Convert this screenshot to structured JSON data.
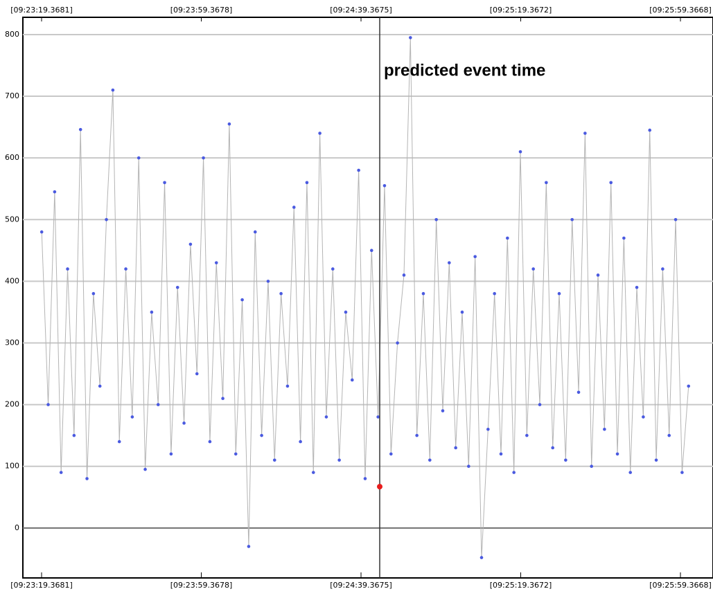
{
  "chart_data": {
    "type": "line",
    "annotation": {
      "text": "predicted event time",
      "x": 33884.05
    },
    "event_point": {
      "x": 33884.05,
      "value": 67,
      "color": "#e81c1c"
    },
    "x": [
      33799.4,
      33801.02,
      33802.64,
      33804.26,
      33805.88,
      33807.5,
      33809.12,
      33810.74,
      33812.36,
      33813.98,
      33815.6,
      33817.22,
      33818.84,
      33820.46,
      33822.08,
      33823.7,
      33825.32,
      33826.94,
      33828.56,
      33830.18,
      33831.8,
      33833.42,
      33835.04,
      33836.66,
      33838.28,
      33839.9,
      33841.52,
      33843.14,
      33844.76,
      33846.38,
      33848,
      33849.62,
      33851.24,
      33852.86,
      33854.48,
      33856.1,
      33857.72,
      33859.34,
      33860.96,
      33862.58,
      33864.2,
      33865.82,
      33867.44,
      33869.06,
      33870.68,
      33872.3,
      33873.92,
      33875.54,
      33877.16,
      33878.78,
      33880.4,
      33882.02,
      33883.64,
      33885.26,
      33886.88,
      33888.5,
      33890.12,
      33891.74,
      33893.36,
      33894.98,
      33896.6,
      33898.22,
      33899.84,
      33901.46,
      33903.08,
      33904.7,
      33906.32,
      33907.94,
      33909.56,
      33911.18,
      33912.8,
      33914.42,
      33916.04,
      33917.66,
      33919.28,
      33920.9,
      33922.52,
      33924.14,
      33925.76,
      33927.38,
      33929,
      33930.62,
      33932.24,
      33933.86,
      33935.48,
      33937.1,
      33938.72,
      33940.34,
      33941.96,
      33943.58,
      33945.2,
      33946.82,
      33948.44,
      33950.06,
      33951.68,
      33953.3,
      33954.92,
      33956.54,
      33958.16,
      33959.78,
      33961.4
    ],
    "series": [
      {
        "color": "#4a5ae0",
        "line_color": "#b4b4b4",
        "values": [
          480,
          200,
          545,
          90,
          420,
          150,
          646,
          80,
          380,
          230,
          500,
          710,
          140,
          420,
          180,
          600,
          95,
          350,
          200,
          560,
          120,
          390,
          170,
          460,
          250,
          600,
          140,
          430,
          210,
          655,
          120,
          370,
          -30,
          480,
          150,
          400,
          110,
          380,
          230,
          520,
          140,
          560,
          90,
          640,
          180,
          420,
          110,
          350,
          240,
          580,
          80,
          450,
          180,
          555,
          120,
          300,
          410,
          795,
          150,
          380,
          110,
          500,
          190,
          430,
          130,
          350,
          100,
          440,
          -48,
          160,
          380,
          120,
          470,
          90,
          610,
          150,
          420,
          200,
          560,
          130,
          380,
          110,
          500,
          220,
          640,
          100,
          410,
          160,
          560,
          120,
          470,
          90,
          390,
          180,
          645,
          110,
          420,
          150,
          500,
          90,
          230
        ]
      }
    ],
    "xlim": [
      33794.68,
      33967.52
    ],
    "ylim": [
      -81,
      828
    ],
    "xticks": [
      {
        "value": 33799.3681,
        "label": "[09:23:19.3681]"
      },
      {
        "value": 33839.3678,
        "label": "[09:23:59.3678]"
      },
      {
        "value": 33879.3675,
        "label": "[09:24:39.3675]"
      },
      {
        "value": 33919.3672,
        "label": "[09:25:19.3672]"
      },
      {
        "value": 33959.3668,
        "label": "[09:25:59.3668]"
      }
    ],
    "yticks": [
      0,
      100,
      200,
      300,
      400,
      500,
      600,
      700,
      800
    ],
    "grid": true
  }
}
